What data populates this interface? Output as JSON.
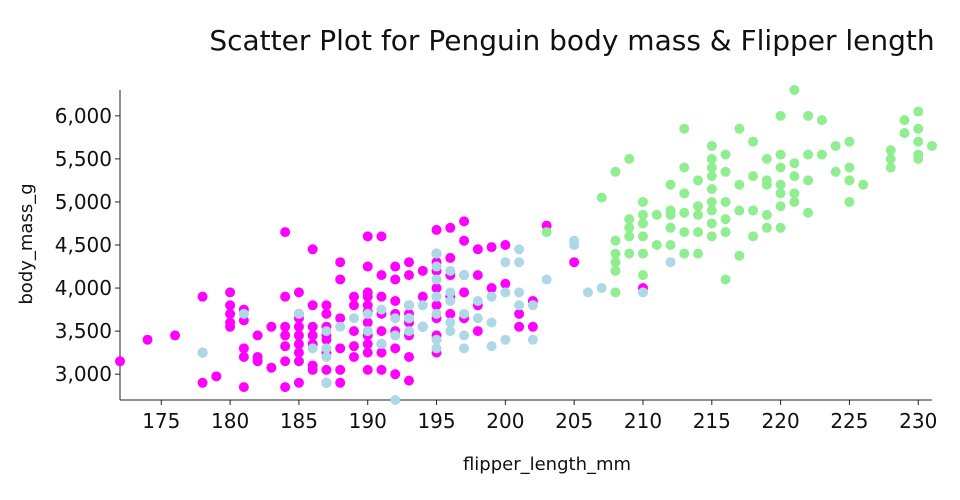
{
  "chart_data": {
    "type": "scatter",
    "title": "Scatter Plot for Penguin body mass & Flipper length",
    "xlabel": "flipper_length_mm",
    "ylabel": "body_mass_g",
    "xlim": [
      172,
      231
    ],
    "ylim": [
      2700,
      6300
    ],
    "x_ticks": [
      175,
      180,
      185,
      190,
      195,
      200,
      205,
      210,
      215,
      220,
      225,
      230
    ],
    "y_ticks": [
      3000,
      3500,
      4000,
      4500,
      5000,
      5500,
      6000
    ],
    "x_tick_labels": [
      "175",
      "180",
      "185",
      "190",
      "195",
      "200",
      "205",
      "210",
      "215",
      "220",
      "225",
      "230"
    ],
    "y_tick_labels": [
      "3,000",
      "3,500",
      "4,000",
      "4,500",
      "5,000",
      "5,500",
      "6,000"
    ],
    "grid": false,
    "legend": "none",
    "series": [
      {
        "color": "#ff00ff",
        "points": [
          [
            172,
            3150
          ],
          [
            174,
            3400
          ],
          [
            176,
            3450
          ],
          [
            178,
            3250
          ],
          [
            178,
            3900
          ],
          [
            178,
            2900
          ],
          [
            179,
            2975
          ],
          [
            180,
            3950
          ],
          [
            180,
            3800
          ],
          [
            180,
            3700
          ],
          [
            180,
            3600
          ],
          [
            180,
            3550
          ],
          [
            181,
            3750
          ],
          [
            181,
            3625
          ],
          [
            181,
            3300
          ],
          [
            181,
            3200
          ],
          [
            181,
            2850
          ],
          [
            182,
            3450
          ],
          [
            182,
            3200
          ],
          [
            182,
            3150
          ],
          [
            183,
            3550
          ],
          [
            183,
            3075
          ],
          [
            184,
            4650
          ],
          [
            184,
            3900
          ],
          [
            184,
            3550
          ],
          [
            184,
            3450
          ],
          [
            184,
            3325
          ],
          [
            184,
            3150
          ],
          [
            184,
            2850
          ],
          [
            185,
            3950
          ],
          [
            185,
            3700
          ],
          [
            185,
            3650
          ],
          [
            185,
            3550
          ],
          [
            185,
            3450
          ],
          [
            185,
            3350
          ],
          [
            185,
            3250
          ],
          [
            185,
            3150
          ],
          [
            185,
            2900
          ],
          [
            186,
            4450
          ],
          [
            186,
            3800
          ],
          [
            186,
            3550
          ],
          [
            186,
            3450
          ],
          [
            186,
            3350
          ],
          [
            186,
            3100
          ],
          [
            186,
            3050
          ],
          [
            187,
            3800
          ],
          [
            187,
            3700
          ],
          [
            187,
            3550
          ],
          [
            187,
            3450
          ],
          [
            187,
            3400
          ],
          [
            187,
            3250
          ],
          [
            187,
            3050
          ],
          [
            187,
            2900
          ],
          [
            188,
            4300
          ],
          [
            188,
            4100
          ],
          [
            188,
            3650
          ],
          [
            188,
            3300
          ],
          [
            188,
            3050
          ],
          [
            188,
            2900
          ],
          [
            189,
            3900
          ],
          [
            189,
            3800
          ],
          [
            189,
            3500
          ],
          [
            189,
            3325
          ],
          [
            189,
            3200
          ],
          [
            190,
            4600
          ],
          [
            190,
            4250
          ],
          [
            190,
            3950
          ],
          [
            190,
            3900
          ],
          [
            190,
            3800
          ],
          [
            190,
            3725
          ],
          [
            190,
            3600
          ],
          [
            190,
            3450
          ],
          [
            190,
            3350
          ],
          [
            190,
            3250
          ],
          [
            190,
            3050
          ],
          [
            191,
            4600
          ],
          [
            191,
            4150
          ],
          [
            191,
            3900
          ],
          [
            191,
            3700
          ],
          [
            191,
            3500
          ],
          [
            191,
            3350
          ],
          [
            191,
            3250
          ],
          [
            191,
            3050
          ],
          [
            192,
            4250
          ],
          [
            192,
            4100
          ],
          [
            192,
            3850
          ],
          [
            192,
            3700
          ],
          [
            192,
            3500
          ],
          [
            192,
            3300
          ],
          [
            192,
            3000
          ],
          [
            193,
            4300
          ],
          [
            193,
            4150
          ],
          [
            193,
            3800
          ],
          [
            193,
            3700
          ],
          [
            193,
            3600
          ],
          [
            193,
            3450
          ],
          [
            193,
            3200
          ],
          [
            193,
            2925
          ],
          [
            194,
            4200
          ],
          [
            194,
            3900
          ],
          [
            194,
            3550
          ],
          [
            195,
            4675
          ],
          [
            195,
            4400
          ],
          [
            195,
            4300
          ],
          [
            195,
            4200
          ],
          [
            195,
            4000
          ],
          [
            195,
            3800
          ],
          [
            195,
            3650
          ],
          [
            195,
            3450
          ],
          [
            195,
            3250
          ],
          [
            196,
            4700
          ],
          [
            196,
            4350
          ],
          [
            196,
            4150
          ],
          [
            196,
            3900
          ],
          [
            196,
            3700
          ],
          [
            197,
            4775
          ],
          [
            197,
            4550
          ],
          [
            197,
            4150
          ],
          [
            197,
            3950
          ],
          [
            197,
            3650
          ],
          [
            198,
            4450
          ],
          [
            198,
            4150
          ],
          [
            198,
            3800
          ],
          [
            198,
            3500
          ],
          [
            199,
            4475
          ],
          [
            199,
            4000
          ],
          [
            200,
            4500
          ],
          [
            200,
            4050
          ],
          [
            201,
            3700
          ],
          [
            201,
            3550
          ],
          [
            202,
            3850
          ],
          [
            202,
            3550
          ],
          [
            203,
            4725
          ],
          [
            205,
            4300
          ],
          [
            210,
            4000
          ]
        ]
      },
      {
        "color": "#add8e6",
        "points": [
          [
            178,
            3250
          ],
          [
            181,
            3700
          ],
          [
            185,
            3700
          ],
          [
            186,
            3300
          ],
          [
            187,
            3500
          ],
          [
            187,
            3300
          ],
          [
            187,
            3200
          ],
          [
            187,
            2900
          ],
          [
            188,
            3550
          ],
          [
            189,
            3650
          ],
          [
            190,
            3700
          ],
          [
            190,
            3500
          ],
          [
            191,
            3750
          ],
          [
            191,
            3350
          ],
          [
            192,
            3650
          ],
          [
            192,
            3450
          ],
          [
            192,
            2700
          ],
          [
            193,
            3800
          ],
          [
            193,
            3650
          ],
          [
            193,
            3500
          ],
          [
            194,
            3800
          ],
          [
            194,
            3550
          ],
          [
            195,
            4400
          ],
          [
            195,
            4250
          ],
          [
            195,
            4100
          ],
          [
            195,
            3900
          ],
          [
            195,
            3700
          ],
          [
            195,
            3400
          ],
          [
            195,
            3300
          ],
          [
            196,
            4200
          ],
          [
            196,
            3950
          ],
          [
            196,
            3850
          ],
          [
            196,
            3600
          ],
          [
            196,
            3500
          ],
          [
            197,
            4150
          ],
          [
            197,
            3700
          ],
          [
            197,
            3450
          ],
          [
            197,
            3300
          ],
          [
            198,
            3850
          ],
          [
            198,
            3650
          ],
          [
            199,
            3900
          ],
          [
            199,
            3600
          ],
          [
            199,
            3325
          ],
          [
            200,
            4300
          ],
          [
            200,
            3950
          ],
          [
            200,
            3400
          ],
          [
            201,
            4450
          ],
          [
            201,
            4300
          ],
          [
            201,
            3950
          ],
          [
            201,
            3800
          ],
          [
            202,
            3800
          ],
          [
            202,
            3400
          ],
          [
            203,
            4100
          ],
          [
            205,
            4550
          ],
          [
            205,
            4500
          ],
          [
            206,
            3950
          ],
          [
            207,
            4000
          ],
          [
            210,
            3950
          ],
          [
            212,
            4300
          ]
        ]
      },
      {
        "color": "#90ee90",
        "points": [
          [
            203,
            4650
          ],
          [
            207,
            5050
          ],
          [
            208,
            5350
          ],
          [
            208,
            4550
          ],
          [
            208,
            4400
          ],
          [
            208,
            4300
          ],
          [
            208,
            4200
          ],
          [
            208,
            3950
          ],
          [
            209,
            5500
          ],
          [
            209,
            4800
          ],
          [
            209,
            4700
          ],
          [
            209,
            4600
          ],
          [
            209,
            4400
          ],
          [
            210,
            5000
          ],
          [
            210,
            4850
          ],
          [
            210,
            4750
          ],
          [
            210,
            4600
          ],
          [
            210,
            4400
          ],
          [
            210,
            4150
          ],
          [
            211,
            4850
          ],
          [
            211,
            4500
          ],
          [
            212,
            5200
          ],
          [
            212,
            4900
          ],
          [
            212,
            4850
          ],
          [
            212,
            4700
          ],
          [
            212,
            4500
          ],
          [
            213,
            5850
          ],
          [
            213,
            5400
          ],
          [
            213,
            5100
          ],
          [
            213,
            4875
          ],
          [
            213,
            4650
          ],
          [
            213,
            4400
          ],
          [
            214,
            5250
          ],
          [
            214,
            4950
          ],
          [
            214,
            4850
          ],
          [
            214,
            4650
          ],
          [
            214,
            4400
          ],
          [
            215,
            5650
          ],
          [
            215,
            5500
          ],
          [
            215,
            5400
          ],
          [
            215,
            5300
          ],
          [
            215,
            5150
          ],
          [
            215,
            5000
          ],
          [
            215,
            4900
          ],
          [
            215,
            4750
          ],
          [
            215,
            4600
          ],
          [
            216,
            5550
          ],
          [
            216,
            5350
          ],
          [
            216,
            5000
          ],
          [
            216,
            4800
          ],
          [
            216,
            4650
          ],
          [
            216,
            4100
          ],
          [
            217,
            5850
          ],
          [
            217,
            5200
          ],
          [
            217,
            4900
          ],
          [
            217,
            4375
          ],
          [
            218,
            5700
          ],
          [
            218,
            5300
          ],
          [
            218,
            4900
          ],
          [
            218,
            4600
          ],
          [
            219,
            5500
          ],
          [
            219,
            5250
          ],
          [
            219,
            5200
          ],
          [
            219,
            4850
          ],
          [
            219,
            4700
          ],
          [
            220,
            6000
          ],
          [
            220,
            5550
          ],
          [
            220,
            5400
          ],
          [
            220,
            5200
          ],
          [
            220,
            5100
          ],
          [
            220,
            4950
          ],
          [
            220,
            4700
          ],
          [
            221,
            6300
          ],
          [
            221,
            5450
          ],
          [
            221,
            5300
          ],
          [
            221,
            5100
          ],
          [
            221,
            5000
          ],
          [
            222,
            6000
          ],
          [
            222,
            5550
          ],
          [
            222,
            5250
          ],
          [
            222,
            4875
          ],
          [
            223,
            5950
          ],
          [
            223,
            5550
          ],
          [
            224,
            5650
          ],
          [
            224,
            5350
          ],
          [
            225,
            5700
          ],
          [
            225,
            5400
          ],
          [
            225,
            5250
          ],
          [
            225,
            5000
          ],
          [
            226,
            5200
          ],
          [
            228,
            5600
          ],
          [
            228,
            5500
          ],
          [
            228,
            5400
          ],
          [
            229,
            5950
          ],
          [
            229,
            5800
          ],
          [
            230,
            6050
          ],
          [
            230,
            5850
          ],
          [
            230,
            5700
          ],
          [
            230,
            5550
          ],
          [
            230,
            5500
          ],
          [
            231,
            5650
          ]
        ]
      }
    ]
  }
}
